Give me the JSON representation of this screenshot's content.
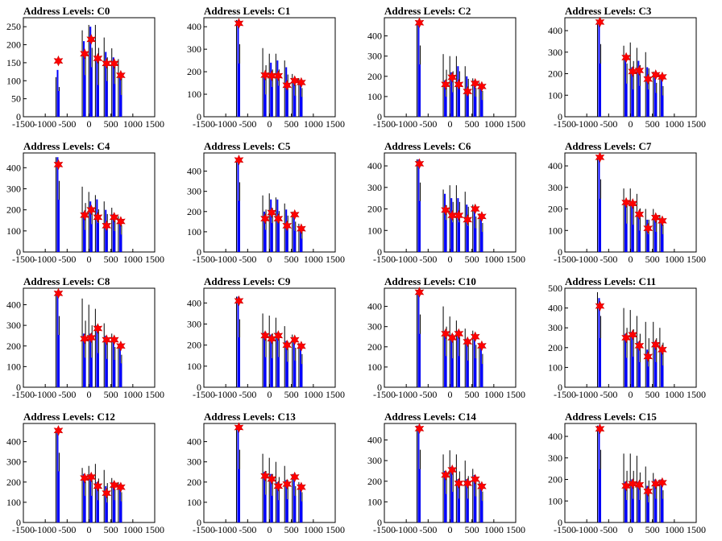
{
  "chart_data": [
    {
      "type": "bar",
      "title": "Address Levels: C0",
      "xlim": [
        -1500,
        1500
      ],
      "ylim": [
        0,
        275
      ],
      "yticks": [
        0,
        50,
        100,
        150,
        200,
        250
      ],
      "xticks": [
        -1500,
        -1000,
        -500,
        0,
        500,
        1000,
        1500
      ],
      "peaks_x": [
        -700,
        -100,
        50,
        200,
        400,
        575,
        725
      ],
      "peak_values": [
        155,
        175,
        215,
        162,
        148,
        148,
        115
      ],
      "black_heights": [
        110,
        240,
        255,
        255,
        220,
        190,
        160
      ],
      "blue_heights": [
        130,
        210,
        250,
        160,
        180,
        165,
        110
      ]
    },
    {
      "type": "bar",
      "title": "Address Levels: C1",
      "xlim": [
        -1500,
        1500
      ],
      "ylim": [
        0,
        440
      ],
      "yticks": [
        0,
        100,
        200,
        300,
        400
      ],
      "xticks": [
        -1500,
        -1000,
        -500,
        0,
        500,
        1000,
        1500
      ],
      "peaks_x": [
        -700,
        -100,
        50,
        200,
        400,
        575,
        725
      ],
      "peak_values": [
        415,
        185,
        182,
        182,
        140,
        160,
        152
      ],
      "black_heights": [
        430,
        305,
        280,
        280,
        250,
        190,
        170
      ],
      "blue_heights": [
        430,
        180,
        240,
        250,
        220,
        170,
        160
      ]
    },
    {
      "type": "bar",
      "title": "Address Levels: C2",
      "xlim": [
        -1500,
        1500
      ],
      "ylim": [
        0,
        490
      ],
      "yticks": [
        0,
        100,
        200,
        300,
        400
      ],
      "xticks": [
        -1500,
        -1000,
        -500,
        0,
        500,
        1000,
        1500
      ],
      "peaks_x": [
        -700,
        -100,
        50,
        200,
        400,
        575,
        725
      ],
      "peak_values": [
        465,
        160,
        195,
        160,
        125,
        165,
        150
      ],
      "black_heights": [
        470,
        310,
        300,
        300,
        250,
        190,
        170
      ],
      "blue_heights": [
        470,
        180,
        220,
        250,
        200,
        180,
        150
      ]
    },
    {
      "type": "bar",
      "title": "Address Levels: C3",
      "xlim": [
        -1500,
        1500
      ],
      "ylim": [
        0,
        460
      ],
      "yticks": [
        0,
        100,
        200,
        300,
        400
      ],
      "xticks": [
        -1500,
        -1000,
        -500,
        0,
        500,
        1000,
        1500
      ],
      "peaks_x": [
        -700,
        -100,
        50,
        200,
        400,
        575,
        725
      ],
      "peak_values": [
        440,
        275,
        210,
        215,
        175,
        195,
        185
      ],
      "black_heights": [
        450,
        330,
        345,
        320,
        300,
        210,
        190
      ],
      "blue_heights": [
        450,
        280,
        230,
        260,
        230,
        200,
        180
      ]
    },
    {
      "type": "bar",
      "title": "Address Levels: C4",
      "xlim": [
        -1500,
        1500
      ],
      "ylim": [
        0,
        470
      ],
      "yticks": [
        0,
        100,
        200,
        300,
        400
      ],
      "xticks": [
        -1500,
        -1000,
        -500,
        0,
        500,
        1000,
        1500
      ],
      "peaks_x": [
        -700,
        -100,
        50,
        200,
        400,
        575,
        725
      ],
      "peak_values": [
        415,
        175,
        200,
        165,
        125,
        165,
        145
      ],
      "black_heights": [
        450,
        310,
        285,
        270,
        240,
        210,
        170
      ],
      "blue_heights": [
        450,
        190,
        240,
        250,
        200,
        180,
        150
      ]
    },
    {
      "type": "bar",
      "title": "Address Levels: C5",
      "xlim": [
        -1500,
        1500
      ],
      "ylim": [
        0,
        490
      ],
      "yticks": [
        0,
        100,
        200,
        300,
        400
      ],
      "xticks": [
        -1500,
        -1000,
        -500,
        0,
        500,
        1000,
        1500
      ],
      "peaks_x": [
        -700,
        -100,
        50,
        200,
        400,
        575,
        725
      ],
      "peak_values": [
        455,
        165,
        195,
        165,
        130,
        185,
        115
      ],
      "black_heights": [
        460,
        280,
        290,
        270,
        240,
        200,
        140
      ],
      "blue_heights": [
        460,
        200,
        260,
        260,
        210,
        190,
        120
      ]
    },
    {
      "type": "bar",
      "title": "Address Levels: C6",
      "xlim": [
        -1500,
        1500
      ],
      "ylim": [
        0,
        460
      ],
      "yticks": [
        0,
        100,
        200,
        300,
        400
      ],
      "xticks": [
        -1500,
        -1000,
        -500,
        0,
        500,
        1000,
        1500
      ],
      "peaks_x": [
        -700,
        -100,
        50,
        200,
        400,
        575,
        725
      ],
      "peak_values": [
        410,
        195,
        170,
        170,
        150,
        200,
        165
      ],
      "black_heights": [
        430,
        290,
        310,
        310,
        280,
        220,
        180
      ],
      "blue_heights": [
        430,
        270,
        250,
        250,
        220,
        200,
        170
      ]
    },
    {
      "type": "bar",
      "title": "Address Levels: C7",
      "xlim": [
        -1500,
        1500
      ],
      "ylim": [
        0,
        460
      ],
      "yticks": [
        0,
        100,
        200,
        300,
        400
      ],
      "xticks": [
        -1500,
        -1000,
        -500,
        0,
        500,
        1000,
        1500
      ],
      "peaks_x": [
        -700,
        -100,
        50,
        200,
        400,
        575,
        725
      ],
      "peak_values": [
        440,
        230,
        225,
        175,
        110,
        160,
        145
      ],
      "black_heights": [
        450,
        295,
        295,
        270,
        200,
        200,
        170
      ],
      "blue_heights": [
        450,
        240,
        230,
        180,
        150,
        170,
        150
      ]
    },
    {
      "type": "bar",
      "title": "Address Levels: C8",
      "xlim": [
        -1500,
        1500
      ],
      "ylim": [
        0,
        480
      ],
      "yticks": [
        0,
        100,
        200,
        300,
        400
      ],
      "xticks": [
        -1500,
        -1000,
        -500,
        0,
        500,
        1000,
        1500
      ],
      "peaks_x": [
        -700,
        -100,
        50,
        200,
        400,
        575,
        725
      ],
      "peak_values": [
        455,
        235,
        240,
        285,
        230,
        230,
        200
      ],
      "black_heights": [
        460,
        430,
        400,
        380,
        310,
        260,
        210
      ],
      "blue_heights": [
        460,
        260,
        260,
        300,
        250,
        240,
        210
      ]
    },
    {
      "type": "bar",
      "title": "Address Levels: C9",
      "xlim": [
        -1500,
        1500
      ],
      "ylim": [
        0,
        470
      ],
      "yticks": [
        0,
        100,
        200,
        300,
        400
      ],
      "xticks": [
        -1500,
        -1000,
        -500,
        0,
        500,
        1000,
        1500
      ],
      "peaks_x": [
        -700,
        -100,
        50,
        200,
        400,
        575,
        725
      ],
      "peak_values": [
        410,
        245,
        230,
        245,
        200,
        225,
        195
      ],
      "black_heights": [
        430,
        350,
        340,
        330,
        290,
        250,
        210
      ],
      "blue_heights": [
        430,
        260,
        250,
        260,
        220,
        230,
        200
      ]
    },
    {
      "type": "bar",
      "title": "Address Levels: C10",
      "xlim": [
        -1500,
        1500
      ],
      "ylim": [
        0,
        490
      ],
      "yticks": [
        0,
        100,
        200,
        300,
        400
      ],
      "xticks": [
        -1500,
        -1000,
        -500,
        0,
        500,
        1000,
        1500
      ],
      "peaks_x": [
        -700,
        -100,
        50,
        200,
        400,
        575,
        725
      ],
      "peak_values": [
        470,
        265,
        245,
        265,
        225,
        250,
        205
      ],
      "black_heights": [
        480,
        400,
        350,
        330,
        290,
        280,
        220
      ],
      "blue_heights": [
        480,
        280,
        260,
        280,
        240,
        260,
        210
      ]
    },
    {
      "type": "bar",
      "title": "Address Levels: C11",
      "xlim": [
        -1500,
        1500
      ],
      "ylim": [
        0,
        500
      ],
      "yticks": [
        0,
        100,
        200,
        300,
        400,
        500
      ],
      "xticks": [
        -1500,
        -1000,
        -500,
        0,
        500,
        1000,
        1500
      ],
      "peaks_x": [
        -700,
        -100,
        50,
        200,
        400,
        575,
        725
      ],
      "peak_values": [
        410,
        250,
        265,
        210,
        155,
        215,
        190
      ],
      "black_heights": [
        480,
        400,
        390,
        360,
        330,
        330,
        300
      ],
      "blue_heights": [
        450,
        270,
        280,
        230,
        190,
        230,
        200
      ]
    },
    {
      "type": "bar",
      "title": "Address Levels: C12",
      "xlim": [
        -1500,
        1500
      ],
      "ylim": [
        0,
        490
      ],
      "yticks": [
        0,
        100,
        200,
        300,
        400
      ],
      "xticks": [
        -1500,
        -1000,
        -500,
        0,
        500,
        1000,
        1500
      ],
      "peaks_x": [
        -700,
        -100,
        50,
        200,
        400,
        575,
        725
      ],
      "peak_values": [
        455,
        220,
        225,
        180,
        145,
        185,
        175
      ],
      "black_heights": [
        460,
        270,
        280,
        290,
        260,
        220,
        200
      ],
      "blue_heights": [
        460,
        240,
        240,
        200,
        180,
        200,
        190
      ]
    },
    {
      "type": "bar",
      "title": "Address Levels: C13",
      "xlim": [
        -1500,
        1500
      ],
      "ylim": [
        0,
        490
      ],
      "yticks": [
        0,
        100,
        200,
        300,
        400
      ],
      "xticks": [
        -1500,
        -1000,
        -500,
        0,
        500,
        1000,
        1500
      ],
      "peaks_x": [
        -700,
        -100,
        50,
        200,
        400,
        575,
        725
      ],
      "peak_values": [
        470,
        230,
        215,
        180,
        190,
        225,
        175
      ],
      "black_heights": [
        480,
        340,
        320,
        300,
        280,
        240,
        200
      ],
      "blue_heights": [
        480,
        250,
        240,
        200,
        210,
        240,
        190
      ]
    },
    {
      "type": "bar",
      "title": "Address Levels: C14",
      "xlim": [
        -1500,
        1500
      ],
      "ylim": [
        0,
        480
      ],
      "yticks": [
        0,
        100,
        200,
        300,
        400
      ],
      "xticks": [
        -1500,
        -1000,
        -500,
        0,
        500,
        1000,
        1500
      ],
      "peaks_x": [
        -700,
        -100,
        50,
        200,
        400,
        575,
        725
      ],
      "peak_values": [
        455,
        230,
        255,
        190,
        190,
        210,
        175
      ],
      "black_heights": [
        470,
        330,
        350,
        330,
        300,
        260,
        200
      ],
      "blue_heights": [
        470,
        250,
        270,
        210,
        210,
        230,
        190
      ]
    },
    {
      "type": "bar",
      "title": "Address Levels: C15",
      "xlim": [
        -1500,
        1500
      ],
      "ylim": [
        0,
        460
      ],
      "yticks": [
        0,
        100,
        200,
        300,
        400
      ],
      "xticks": [
        -1500,
        -1000,
        -500,
        0,
        500,
        1000,
        1500
      ],
      "peaks_x": [
        -700,
        -100,
        50,
        200,
        400,
        575,
        725
      ],
      "peak_values": [
        435,
        170,
        180,
        175,
        145,
        180,
        185
      ],
      "black_heights": [
        450,
        320,
        320,
        310,
        260,
        230,
        200
      ],
      "blue_heights": [
        450,
        190,
        200,
        190,
        170,
        200,
        200
      ]
    }
  ]
}
